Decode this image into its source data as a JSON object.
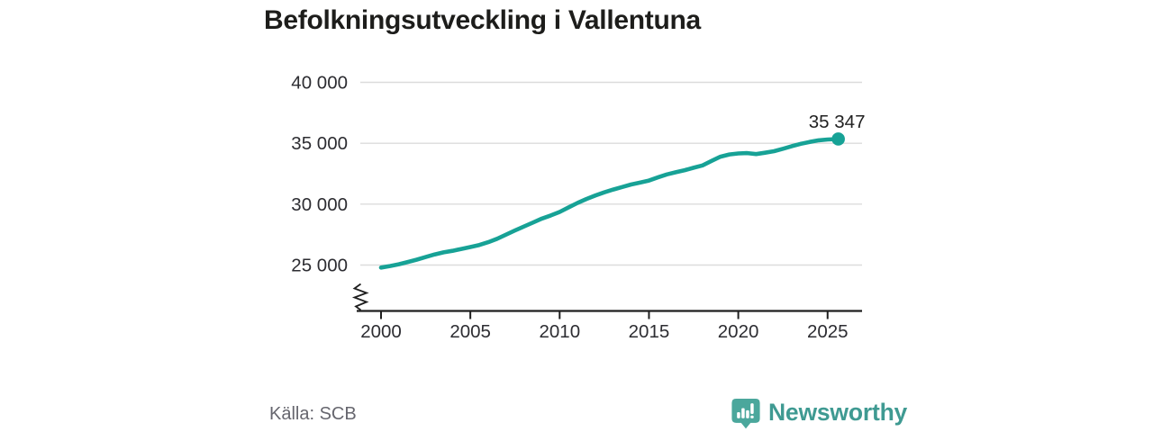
{
  "chart": {
    "title": "Befolkningsutveckling i Vallentuna"
  },
  "chart_data": {
    "type": "line",
    "title": "Befolkningsutveckling i Vallentuna",
    "xlabel": "",
    "ylabel": "",
    "x_ticks": [
      2000,
      2005,
      2010,
      2015,
      2020,
      2025
    ],
    "x_tick_labels": [
      "2000",
      "2005",
      "2010",
      "2015",
      "2020",
      "2025"
    ],
    "y_ticks": [
      25000,
      30000,
      35000,
      40000
    ],
    "y_tick_labels": [
      "25 000",
      "30 000",
      "35 000",
      "40 000"
    ],
    "ylim": [
      25000,
      40000
    ],
    "xlim": [
      2000,
      2027
    ],
    "axis_break_below_ymin": true,
    "grid": "horizontal",
    "gridline_color": "#dcdcdc",
    "axis_color": "#1f1f1f",
    "tick_label_color": "#2d2d32",
    "line_color": "#17A296",
    "series": [
      {
        "name": "Befolkning i Vallentuna",
        "end_label": "35 347",
        "end_value": 35347,
        "points": [
          [
            2000,
            24790
          ],
          [
            2000.5,
            24920
          ],
          [
            2001,
            25070
          ],
          [
            2001.5,
            25250
          ],
          [
            2002,
            25440
          ],
          [
            2002.5,
            25660
          ],
          [
            2003,
            25870
          ],
          [
            2003.5,
            26040
          ],
          [
            2004,
            26170
          ],
          [
            2004.5,
            26320
          ],
          [
            2005,
            26480
          ],
          [
            2005.5,
            26650
          ],
          [
            2006,
            26880
          ],
          [
            2006.5,
            27160
          ],
          [
            2007,
            27500
          ],
          [
            2007.5,
            27840
          ],
          [
            2008,
            28160
          ],
          [
            2008.5,
            28490
          ],
          [
            2009,
            28810
          ],
          [
            2009.5,
            29070
          ],
          [
            2010,
            29360
          ],
          [
            2010.5,
            29740
          ],
          [
            2011,
            30100
          ],
          [
            2011.5,
            30420
          ],
          [
            2012,
            30710
          ],
          [
            2012.5,
            30970
          ],
          [
            2013,
            31200
          ],
          [
            2013.5,
            31410
          ],
          [
            2014,
            31610
          ],
          [
            2014.5,
            31770
          ],
          [
            2015,
            31940
          ],
          [
            2015.5,
            32200
          ],
          [
            2016,
            32440
          ],
          [
            2016.5,
            32620
          ],
          [
            2017,
            32790
          ],
          [
            2017.5,
            32990
          ],
          [
            2018,
            33180
          ],
          [
            2018.5,
            33550
          ],
          [
            2019,
            33900
          ],
          [
            2019.5,
            34080
          ],
          [
            2020,
            34160
          ],
          [
            2020.5,
            34190
          ],
          [
            2021,
            34110
          ],
          [
            2021.5,
            34220
          ],
          [
            2022,
            34350
          ],
          [
            2022.5,
            34550
          ],
          [
            2023,
            34760
          ],
          [
            2023.5,
            34950
          ],
          [
            2024,
            35110
          ],
          [
            2024.5,
            35240
          ],
          [
            2025,
            35310
          ],
          [
            2025.6,
            35347
          ]
        ]
      }
    ]
  },
  "footer": {
    "source": "Källa: SCB",
    "brand": "Newsworthy",
    "brand_color": "#3F9A92",
    "icon_color": "#4BA79C"
  }
}
